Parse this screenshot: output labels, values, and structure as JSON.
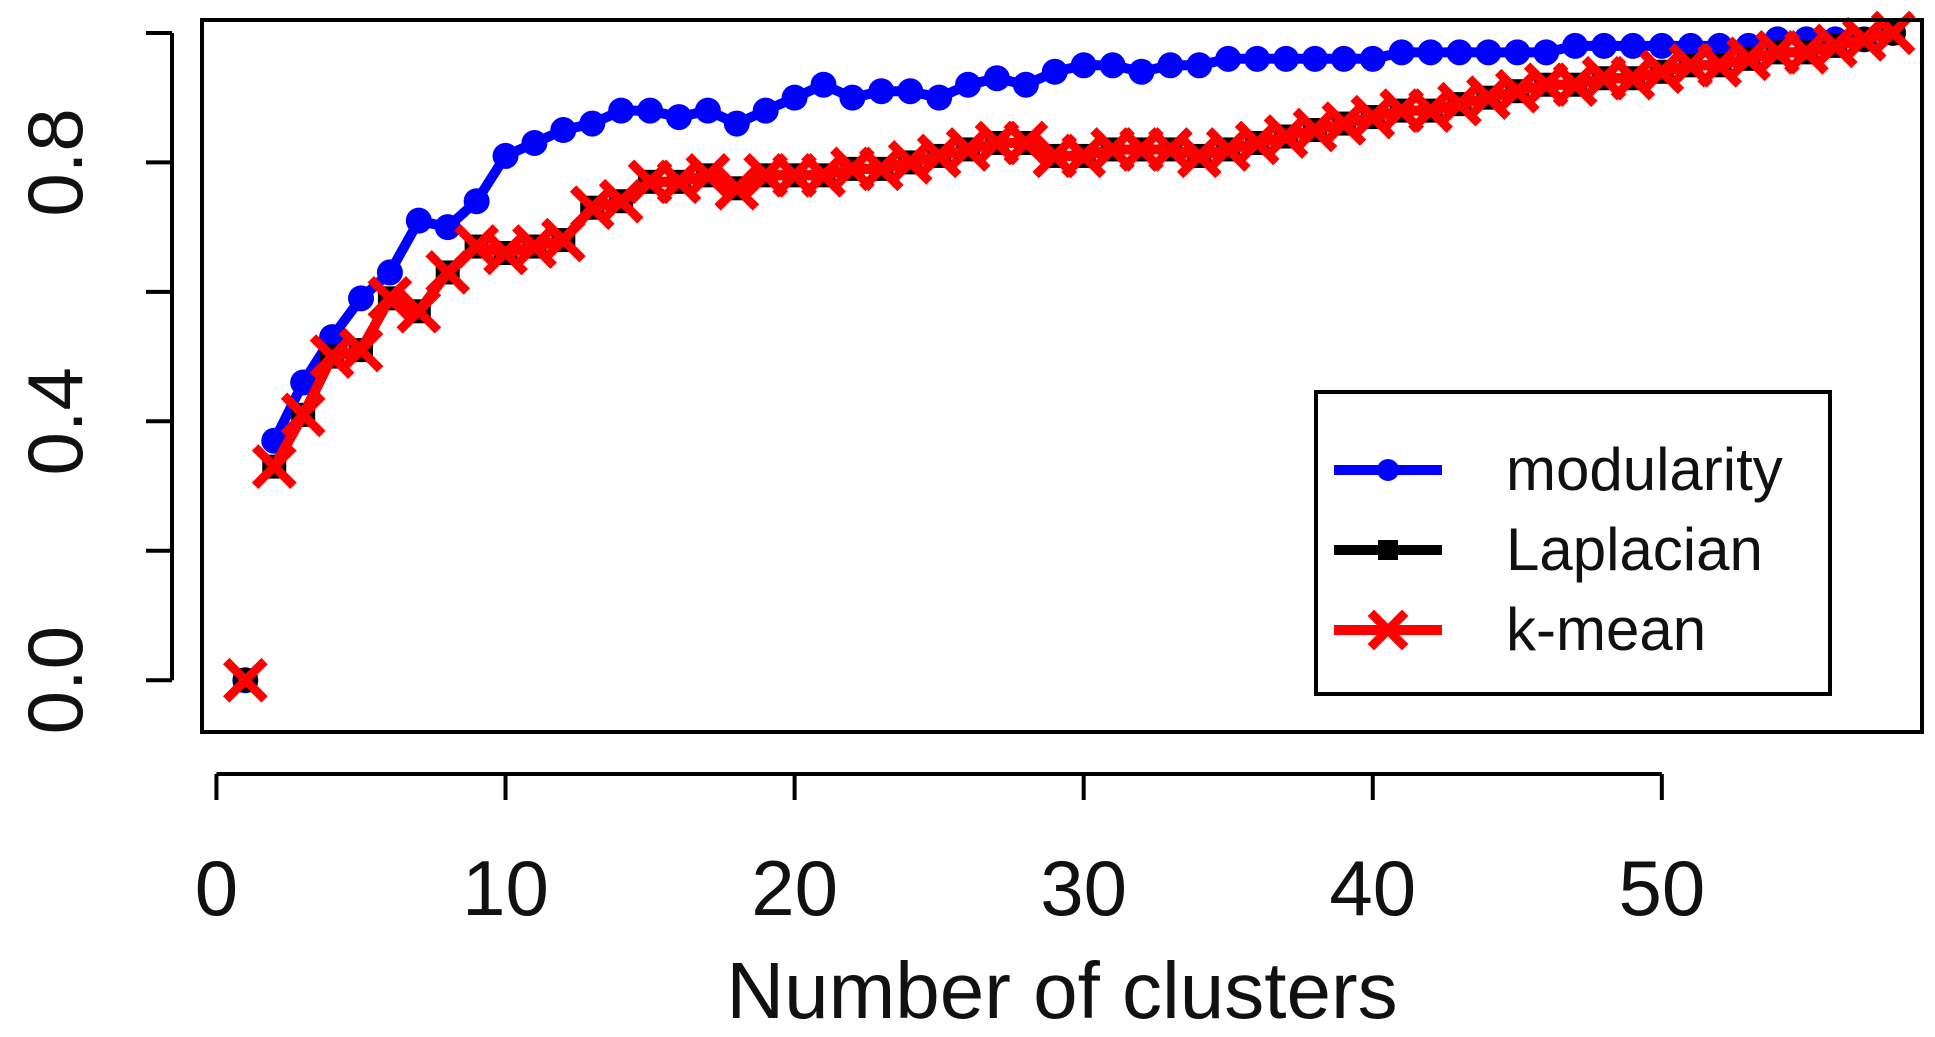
{
  "chart_data": {
    "type": "line",
    "title": "",
    "xlabel": "Number of clusters",
    "ylabel": "",
    "xlim": [
      -0.5,
      59
    ],
    "ylim": [
      -0.08,
      1.02
    ],
    "xticks": [
      0,
      10,
      20,
      30,
      40,
      50
    ],
    "xtick_labels": [
      "0",
      "10",
      "20",
      "30",
      "40",
      "50"
    ],
    "yticks": [
      0.0,
      0.2,
      0.4,
      0.6,
      0.8,
      1.0
    ],
    "ytick_labels": [
      "0.0",
      "",
      "0.4",
      "",
      "0.8",
      ""
    ],
    "grid": false,
    "legend_position": "bottom-right",
    "x": [
      1,
      2,
      3,
      4,
      5,
      6,
      7,
      8,
      9,
      10,
      11,
      12,
      13,
      14,
      15,
      16,
      17,
      18,
      19,
      20,
      21,
      22,
      23,
      24,
      25,
      26,
      27,
      28,
      29,
      30,
      31,
      32,
      33,
      34,
      35,
      36,
      37,
      38,
      39,
      40,
      41,
      42,
      43,
      44,
      45,
      46,
      47,
      48,
      49,
      50,
      51,
      52,
      53,
      54,
      55,
      56,
      57,
      58
    ],
    "series": [
      {
        "name": "modularity",
        "color": "#0000ff",
        "marker": "circle",
        "values": [
          0.0,
          0.37,
          0.46,
          0.53,
          0.59,
          0.63,
          0.71,
          0.7,
          0.74,
          0.81,
          0.83,
          0.85,
          0.86,
          0.88,
          0.88,
          0.87,
          0.88,
          0.86,
          0.88,
          0.9,
          0.92,
          0.9,
          0.91,
          0.91,
          0.9,
          0.92,
          0.93,
          0.92,
          0.94,
          0.95,
          0.95,
          0.94,
          0.95,
          0.95,
          0.96,
          0.96,
          0.96,
          0.96,
          0.96,
          0.96,
          0.97,
          0.97,
          0.97,
          0.97,
          0.97,
          0.97,
          0.98,
          0.98,
          0.98,
          0.98,
          0.98,
          0.98,
          0.98,
          0.99,
          0.99,
          0.99,
          0.99,
          1.0
        ]
      },
      {
        "name": "Laplacian",
        "color": "#000000",
        "marker": "square",
        "values": [
          0.0,
          0.33,
          0.41,
          0.5,
          0.51,
          0.59,
          0.57,
          0.63,
          0.67,
          0.66,
          0.67,
          0.68,
          0.73,
          0.74,
          0.77,
          0.77,
          0.78,
          0.76,
          0.78,
          0.78,
          0.78,
          0.79,
          0.79,
          0.8,
          0.81,
          0.82,
          0.83,
          0.83,
          0.81,
          0.81,
          0.82,
          0.82,
          0.82,
          0.81,
          0.82,
          0.83,
          0.84,
          0.85,
          0.86,
          0.87,
          0.88,
          0.88,
          0.89,
          0.9,
          0.91,
          0.92,
          0.92,
          0.93,
          0.93,
          0.94,
          0.95,
          0.95,
          0.96,
          0.97,
          0.97,
          0.98,
          0.99,
          1.0
        ]
      },
      {
        "name": "k-mean",
        "color": "#ff0000",
        "marker": "x",
        "values": [
          0.0,
          0.33,
          0.41,
          0.5,
          0.51,
          0.59,
          0.57,
          0.63,
          0.67,
          0.66,
          0.67,
          0.68,
          0.73,
          0.74,
          0.77,
          0.77,
          0.78,
          0.76,
          0.78,
          0.78,
          0.78,
          0.79,
          0.79,
          0.8,
          0.81,
          0.82,
          0.83,
          0.83,
          0.81,
          0.81,
          0.82,
          0.82,
          0.82,
          0.81,
          0.82,
          0.83,
          0.84,
          0.85,
          0.86,
          0.87,
          0.88,
          0.88,
          0.89,
          0.9,
          0.91,
          0.92,
          0.92,
          0.93,
          0.93,
          0.94,
          0.95,
          0.95,
          0.96,
          0.97,
          0.97,
          0.98,
          0.99,
          1.0
        ]
      }
    ]
  }
}
